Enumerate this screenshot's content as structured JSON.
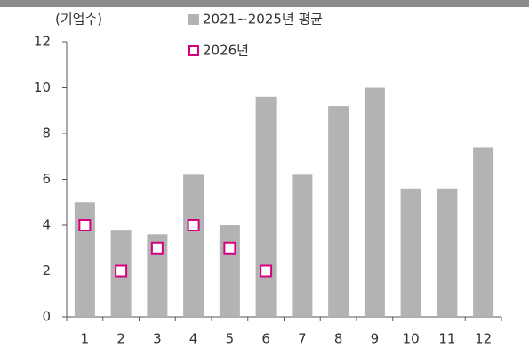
{
  "chart_data": {
    "type": "bar",
    "y_label": "(기업수)",
    "categories": [
      "1",
      "2",
      "3",
      "4",
      "5",
      "6",
      "7",
      "8",
      "9",
      "10",
      "11",
      "12"
    ],
    "series": [
      {
        "name": "2021~2025년 평균",
        "type": "bar",
        "color": "#b3b3b3",
        "values": [
          5,
          3.8,
          3.6,
          6.2,
          4,
          9.6,
          6.2,
          9.2,
          10,
          5.6,
          5.6,
          7.4
        ]
      },
      {
        "name": "2026년",
        "type": "scatter",
        "marker": "square",
        "color": "#d6007e",
        "values": [
          4,
          2,
          3,
          4,
          3,
          2,
          null,
          null,
          null,
          null,
          null,
          null
        ]
      }
    ],
    "ylim": [
      0,
      12
    ],
    "yticks": [
      0,
      2,
      4,
      6,
      8,
      10,
      12
    ],
    "grid": false
  }
}
